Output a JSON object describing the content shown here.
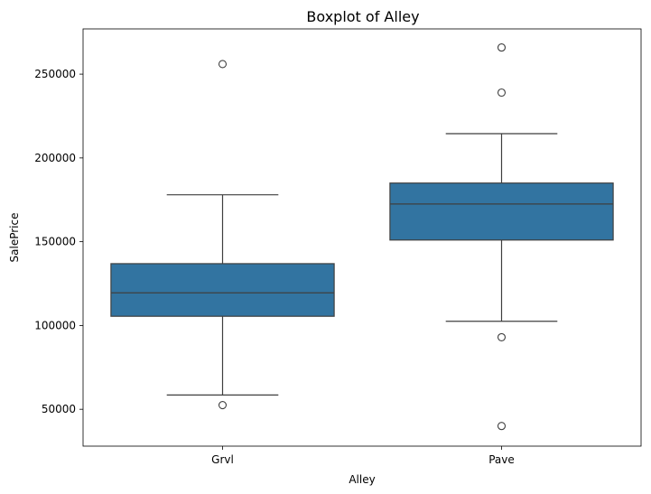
{
  "chart_data": {
    "type": "box",
    "title": "Boxplot of Alley",
    "xlabel": "Alley",
    "ylabel": "SalePrice",
    "categories": [
      "Grvl",
      "Pave"
    ],
    "ylim": [
      28000,
      277000
    ],
    "yticks": [
      50000,
      100000,
      150000,
      200000,
      250000
    ],
    "ytick_labels": [
      "50000",
      "100000",
      "150000",
      "200000",
      "250000"
    ],
    "grid": false,
    "box_color": "#3274a1",
    "line_color": "#3f3f3f",
    "boxes": [
      {
        "category": "Grvl",
        "whisker_low": 58500,
        "q1": 105500,
        "median": 119500,
        "q3": 136900,
        "whisker_high": 178000,
        "outliers": [
          256000,
          52500
        ]
      },
      {
        "category": "Pave",
        "whisker_low": 102500,
        "q1": 151000,
        "median": 172500,
        "q3": 185000,
        "whisker_high": 214500,
        "outliers": [
          265900,
          239000,
          93000,
          40000
        ]
      }
    ]
  }
}
